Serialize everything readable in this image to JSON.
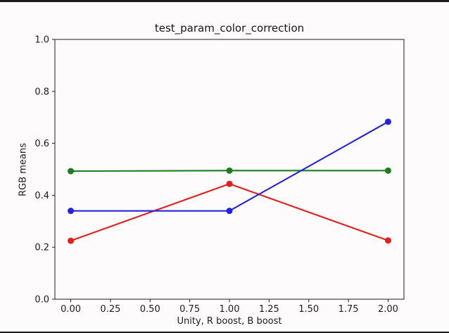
{
  "chart_data": {
    "type": "line",
    "title": "test_param_color_correction",
    "xlabel": "Unity, R boost, B boost",
    "ylabel": "RGB means",
    "x": [
      0.0,
      1.0,
      2.0
    ],
    "series": [
      {
        "name": "red",
        "color": "#e32020",
        "marker": "circle",
        "values": [
          0.225,
          0.444,
          0.226
        ]
      },
      {
        "name": "green",
        "color": "#1e7d1e",
        "marker": "circle",
        "values": [
          0.493,
          0.495,
          0.495
        ]
      },
      {
        "name": "blue",
        "color": "#2424de",
        "marker": "circle",
        "values": [
          0.34,
          0.34,
          0.683
        ]
      }
    ],
    "xlim": [
      -0.1,
      2.1
    ],
    "ylim": [
      0.0,
      1.0
    ],
    "xticks": {
      "values": [
        0.0,
        0.25,
        0.5,
        0.75,
        1.0,
        1.25,
        1.5,
        1.75,
        2.0
      ],
      "labels": [
        "0.00",
        "0.25",
        "0.50",
        "0.75",
        "1.00",
        "1.25",
        "1.50",
        "1.75",
        "2.00"
      ]
    },
    "yticks": {
      "values": [
        0.0,
        0.2,
        0.4,
        0.6,
        0.8,
        1.0
      ],
      "labels": [
        "0.0",
        "0.2",
        "0.4",
        "0.6",
        "0.8",
        "1.0"
      ]
    },
    "grid": false,
    "legend": "none",
    "colors": {
      "axis": "#1c1c1c",
      "text": "#1c1c1c",
      "background": "#fdfbfb",
      "window_edge": "#1a1a1a"
    }
  }
}
